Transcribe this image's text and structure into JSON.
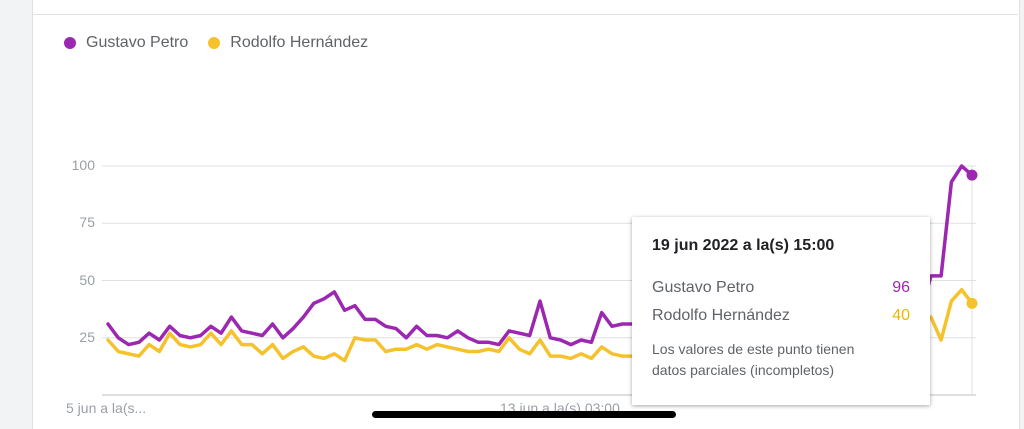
{
  "legend": {
    "series1": "Gustavo Petro",
    "series2": "Rodolfo Hernández"
  },
  "colors": {
    "series1": "#9c27b0",
    "series2": "#f6c22c",
    "grid": "#e0e0e0",
    "axis_text": "#9aa0a6"
  },
  "tooltip": {
    "title": "19 jun 2022 a la(s) 15:00",
    "rows": [
      {
        "name": "Gustavo Petro",
        "value": "96"
      },
      {
        "name": "Rodolfo Hernández",
        "value": "40"
      }
    ],
    "note": "Los valores de este punto tienen datos parciales (incompletos)"
  },
  "chart_data": {
    "type": "line",
    "x_labels": [
      "5 jun a la(s...",
      "13 jun a la(s) 03:00"
    ],
    "yticks": [
      25,
      50,
      75,
      100
    ],
    "ylim": [
      0,
      100
    ],
    "grid": true,
    "legend_position": "top-left",
    "series": [
      {
        "name": "Gustavo Petro",
        "values": [
          31,
          25,
          22,
          23,
          27,
          24,
          30,
          26,
          25,
          26,
          30,
          27,
          34,
          28,
          27,
          26,
          31,
          25,
          29,
          34,
          40,
          42,
          45,
          37,
          39,
          33,
          33,
          30,
          29,
          25,
          30,
          26,
          26,
          25,
          28,
          25,
          23,
          23,
          22,
          28,
          27,
          26,
          41,
          25,
          24,
          22,
          24,
          23,
          36,
          30,
          31,
          31,
          29,
          30,
          31,
          35,
          37,
          40,
          39,
          36,
          33,
          41,
          54,
          63,
          70,
          36,
          45,
          38,
          40,
          43,
          48,
          45,
          40,
          38,
          40,
          56,
          58,
          59,
          72,
          35,
          52,
          52,
          93,
          100,
          96
        ]
      },
      {
        "name": "Rodolfo Hernández",
        "values": [
          24,
          19,
          18,
          17,
          22,
          19,
          27,
          22,
          21,
          22,
          27,
          22,
          28,
          22,
          22,
          18,
          22,
          16,
          19,
          21,
          17,
          16,
          18,
          15,
          25,
          24,
          24,
          19,
          20,
          20,
          22,
          20,
          22,
          21,
          20,
          19,
          19,
          20,
          19,
          25,
          20,
          18,
          24,
          17,
          17,
          16,
          18,
          16,
          21,
          18,
          17,
          17,
          16,
          18,
          20,
          22,
          24,
          25,
          24,
          22,
          20,
          23,
          26,
          27,
          28,
          20,
          22,
          25,
          28,
          26,
          30,
          27,
          30,
          28,
          27,
          35,
          34,
          36,
          38,
          30,
          34,
          24,
          41,
          46,
          40
        ]
      }
    ]
  }
}
